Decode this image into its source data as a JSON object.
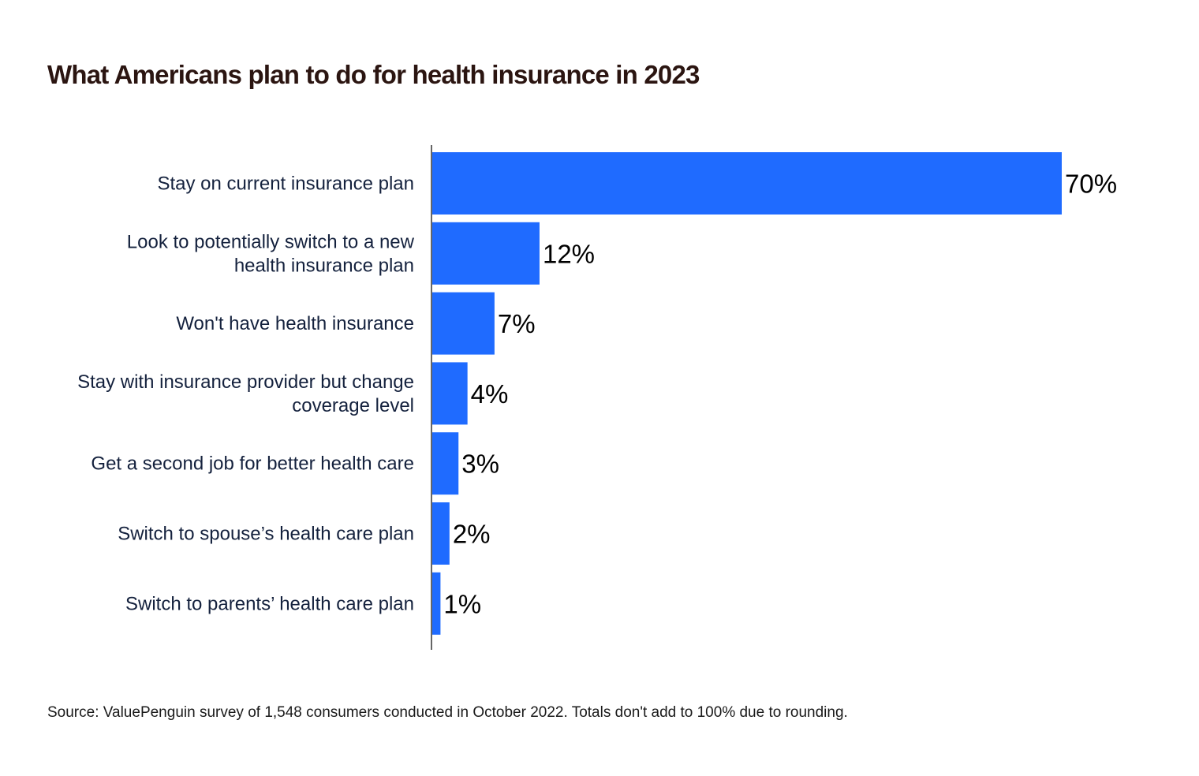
{
  "chart_data": {
    "type": "bar",
    "orientation": "horizontal",
    "title": "What Americans plan to do for health insurance in 2023",
    "categories": [
      [
        "Stay on current insurance plan"
      ],
      [
        "Look to potentially switch to a new",
        "health insurance plan"
      ],
      [
        "Won't have health insurance"
      ],
      [
        "Stay with insurance provider but change",
        "coverage level"
      ],
      [
        "Get a second job for better health care"
      ],
      [
        "Switch to spouse’s health care plan"
      ],
      [
        "Switch to parents’ health care plan"
      ]
    ],
    "values": [
      70,
      12,
      7,
      4,
      3,
      2,
      1
    ],
    "value_labels": [
      "70%",
      "12%",
      "7%",
      "4%",
      "3%",
      "2%",
      "1%"
    ],
    "xlim": [
      0,
      70
    ],
    "grid": false,
    "colors": {
      "bar": "#1f6bff",
      "axis": "#666666",
      "title": "#2b1511"
    }
  },
  "source": "Source: ValuePenguin survey of 1,548 consumers conducted in October 2022. Totals don't add to 100% due to rounding."
}
